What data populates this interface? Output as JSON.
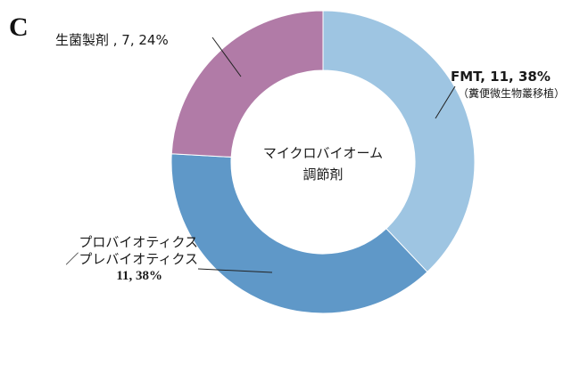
{
  "panel_label": "C",
  "colors": {
    "fmt": "#9ec5e2",
    "probiotics": "#5f98c8",
    "live_bacteria": "#b17ba7",
    "leader": "#222222"
  },
  "chart_data": {
    "type": "pie",
    "style": "donut",
    "center_label": [
      "マイクロバイオーム",
      "調節剤"
    ],
    "slices": [
      {
        "name": "FMT",
        "count": 11,
        "percent": 38,
        "label": "FMT, 11, 38%",
        "sublabel": "（糞便微生物叢移植）",
        "color": "#9ec5e2"
      },
      {
        "name": "プロバイオティクス／プレバイオティクス",
        "count": 11,
        "percent": 38,
        "label_lines": [
          "プロバイオティクス",
          "／プレバイオティクス",
          "11, 38%"
        ],
        "color": "#5f98c8"
      },
      {
        "name": "生菌製剤",
        "count": 7,
        "percent": 24,
        "label": "生菌製剤 , 7, 24%",
        "color": "#b17ba7"
      }
    ]
  }
}
